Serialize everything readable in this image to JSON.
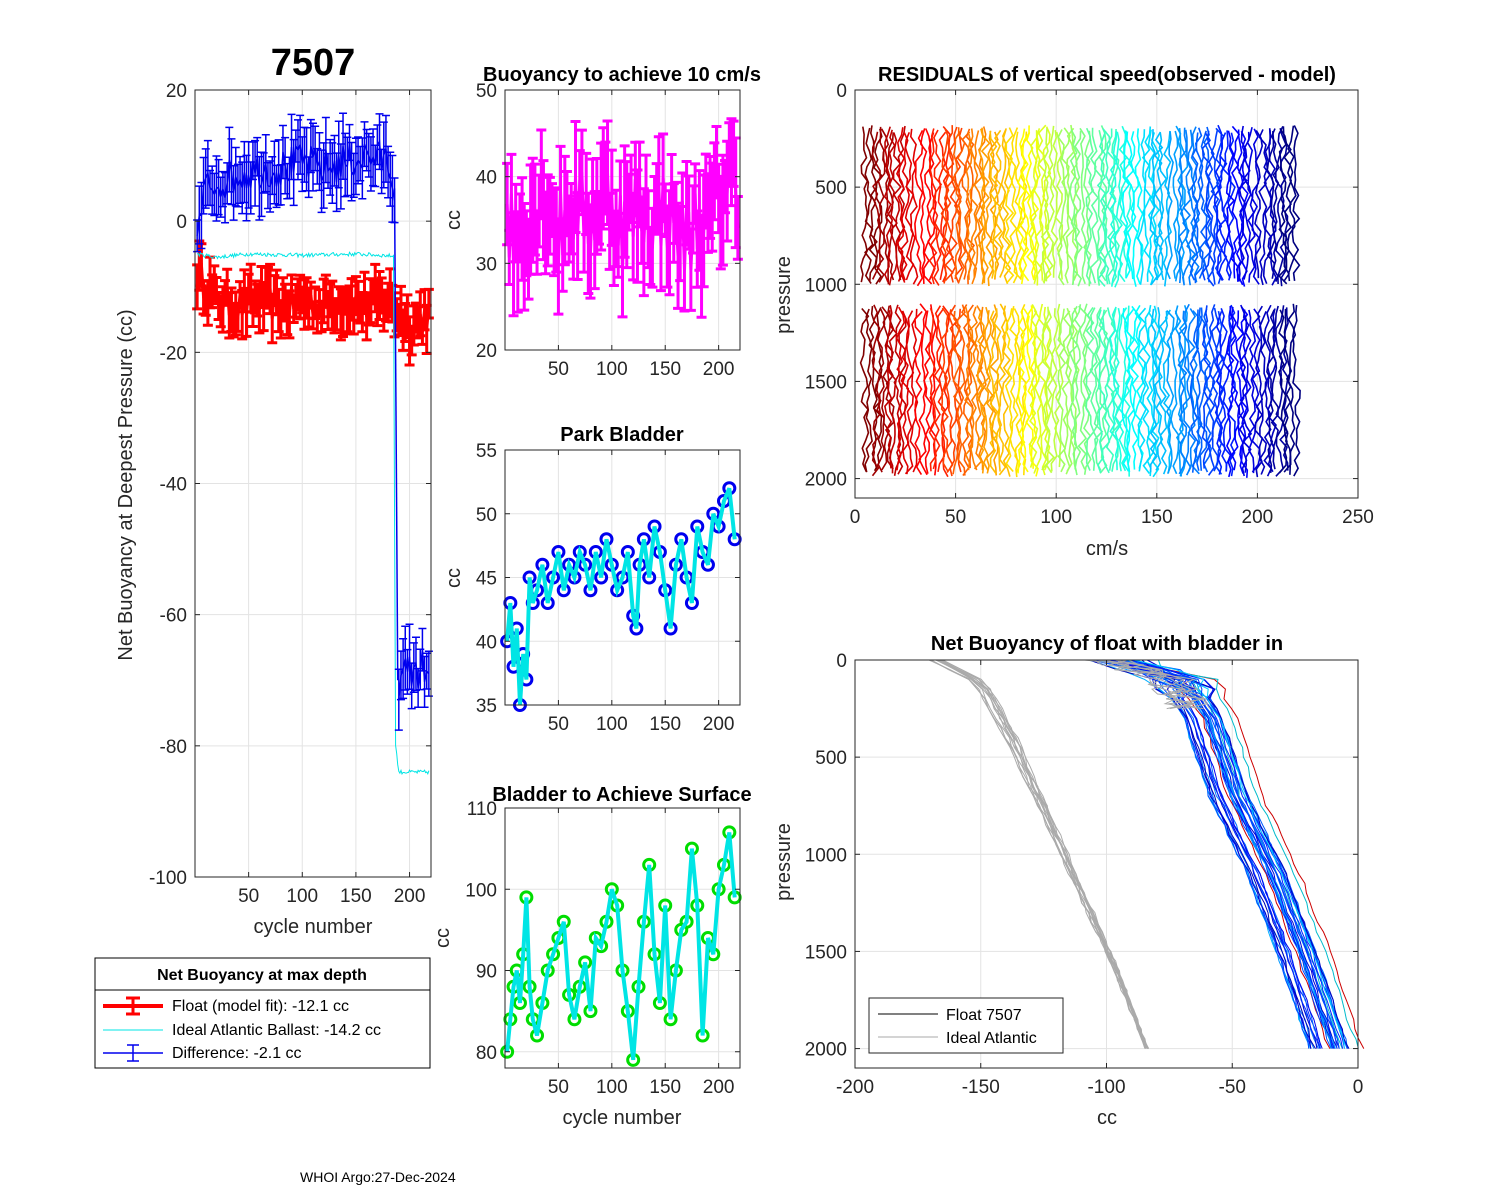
{
  "float_id": "7507",
  "footer": "WHOI Argo:27-Dec-2024",
  "colors": {
    "red": "#ff0000",
    "blue": "#0000ee",
    "cyan": "#00e5e5",
    "magenta": "#ff00ff",
    "green": "#00dd00",
    "gray": "#aaaaaa",
    "black": "#000000"
  },
  "chart_data": [
    {
      "id": "net_buoyancy",
      "type": "line",
      "title": "7507",
      "xlabel": "cycle number",
      "ylabel": "Net Buoyancy at Deepest Pressure (cc)",
      "xlim": [
        0,
        220
      ],
      "ylim": [
        -100,
        20
      ],
      "xticks": [
        50,
        100,
        150,
        200
      ],
      "xtick_labels": [
        "50",
        "100",
        "150",
        "200"
      ],
      "yticks": [
        -100,
        -80,
        -60,
        -40,
        -20,
        0,
        20
      ],
      "ytick_labels": [
        "-100",
        "-80",
        "-60",
        "-40",
        "-20",
        "0",
        "20"
      ],
      "grid": true,
      "series": [
        {
          "name": "Float (model fit)",
          "color": "#ff0000",
          "x": [
            2,
            20,
            40,
            60,
            80,
            100,
            120,
            140,
            160,
            180,
            190,
            200,
            210,
            218
          ],
          "y": [
            -8,
            -12,
            -13,
            -12,
            -13,
            -12,
            -13,
            -12,
            -13,
            -12,
            -14,
            -16,
            -15,
            -14
          ],
          "err": 3
        },
        {
          "name": "Ideal Atlantic Ballast",
          "color": "#00e5e5",
          "x": [
            2,
            20,
            50,
            100,
            150,
            185,
            187,
            190,
            200,
            218
          ],
          "y": [
            -5,
            -5.5,
            -5,
            -5.2,
            -5,
            -5.3,
            -80,
            -84,
            -84,
            -84
          ],
          "err": 0
        },
        {
          "name": "Difference",
          "color": "#0000ee",
          "x": [
            2,
            10,
            20,
            40,
            60,
            80,
            100,
            120,
            140,
            160,
            180,
            186,
            190,
            200,
            210,
            218
          ],
          "y": [
            -2,
            5,
            6,
            7,
            8,
            8,
            9,
            8,
            9,
            10,
            9,
            5,
            -70,
            -69,
            -68,
            -69
          ],
          "err": 4
        }
      ],
      "legend": {
        "title": "Net Buoyancy at max depth",
        "entries": [
          "Float (model fit): -12.1 cc",
          "Ideal Atlantic Ballast: -14.2 cc",
          "Difference:  -2.1 cc"
        ],
        "placement": "below"
      }
    },
    {
      "id": "buoyancy_10cms",
      "type": "line",
      "title": "Buoyancy to achieve 10 cm/s",
      "xlabel": "",
      "ylabel": "cc",
      "xlim": [
        0,
        220
      ],
      "ylim": [
        20,
        50
      ],
      "xticks": [
        50,
        100,
        150,
        200
      ],
      "xtick_labels": [
        "50",
        "100",
        "150",
        "200"
      ],
      "yticks": [
        20,
        30,
        40,
        50
      ],
      "ytick_labels": [
        "20",
        "30",
        "40",
        "50"
      ],
      "grid": true,
      "series": [
        {
          "name": "buoyancy",
          "color": "#ff00ff",
          "x": [
            2,
            10,
            20,
            30,
            40,
            50,
            60,
            70,
            80,
            90,
            100,
            110,
            120,
            130,
            140,
            150,
            160,
            170,
            180,
            190,
            200,
            210,
            218
          ],
          "y": [
            36,
            32,
            35,
            37,
            38,
            33,
            37,
            36,
            35,
            38,
            37,
            34,
            36,
            36,
            35,
            37,
            34,
            33,
            35,
            34,
            38,
            40,
            39
          ],
          "err": 5
        }
      ]
    },
    {
      "id": "park_bladder",
      "type": "line",
      "title": "Park Bladder",
      "xlabel": "",
      "ylabel": "cc",
      "xlim": [
        0,
        220
      ],
      "ylim": [
        35,
        55
      ],
      "xticks": [
        50,
        100,
        150,
        200
      ],
      "xtick_labels": [
        "50",
        "100",
        "150",
        "200"
      ],
      "yticks": [
        35,
        40,
        45,
        50,
        55
      ],
      "ytick_labels": [
        "35",
        "40",
        "45",
        "50",
        "55"
      ],
      "grid": true,
      "series": [
        {
          "name": "park",
          "color": "#00e5e5",
          "marker_color": "#0000ee",
          "x": [
            2,
            5,
            8,
            11,
            14,
            17,
            20,
            23,
            26,
            30,
            35,
            40,
            45,
            50,
            55,
            60,
            65,
            70,
            75,
            80,
            85,
            90,
            95,
            100,
            105,
            110,
            115,
            120,
            123,
            126,
            130,
            135,
            140,
            145,
            150,
            155,
            160,
            165,
            170,
            175,
            180,
            185,
            190,
            195,
            200,
            205,
            210,
            215
          ],
          "y": [
            40,
            43,
            38,
            41,
            35,
            39,
            37,
            45,
            43,
            44,
            46,
            43,
            45,
            47,
            44,
            46,
            45,
            47,
            46,
            44,
            47,
            45,
            48,
            46,
            44,
            45,
            47,
            42,
            41,
            46,
            48,
            45,
            49,
            47,
            44,
            41,
            46,
            48,
            45,
            43,
            49,
            47,
            46,
            50,
            49,
            51,
            52,
            48
          ]
        }
      ]
    },
    {
      "id": "bladder_surface",
      "type": "line",
      "title": "Bladder to Achieve Surface",
      "xlabel": "cycle number",
      "ylabel": "cc",
      "xlim": [
        0,
        220
      ],
      "ylim": [
        78,
        110
      ],
      "xticks": [
        50,
        100,
        150,
        200
      ],
      "xtick_labels": [
        "50",
        "100",
        "150",
        "200"
      ],
      "yticks": [
        80,
        90,
        100,
        110
      ],
      "ytick_labels": [
        "80",
        "90",
        "100",
        "110"
      ],
      "grid": true,
      "series": [
        {
          "name": "surface",
          "color": "#00e5e5",
          "marker_color": "#00dd00",
          "x": [
            2,
            5,
            8,
            11,
            14,
            17,
            20,
            23,
            26,
            30,
            35,
            40,
            45,
            50,
            55,
            60,
            65,
            70,
            75,
            80,
            85,
            90,
            95,
            100,
            105,
            110,
            115,
            120,
            125,
            130,
            135,
            140,
            145,
            150,
            155,
            160,
            165,
            170,
            175,
            180,
            185,
            190,
            195,
            200,
            205,
            210,
            215
          ],
          "y": [
            80,
            84,
            88,
            90,
            86,
            92,
            99,
            88,
            84,
            82,
            86,
            90,
            92,
            94,
            96,
            87,
            84,
            88,
            91,
            85,
            94,
            93,
            96,
            100,
            98,
            90,
            85,
            79,
            88,
            96,
            103,
            92,
            86,
            98,
            84,
            90,
            95,
            96,
            105,
            98,
            82,
            94,
            92,
            100,
            103,
            107,
            99
          ]
        }
      ]
    },
    {
      "id": "residuals",
      "type": "line",
      "title": "RESIDUALS of vertical speed(observed - model)",
      "xlabel": "cm/s",
      "ylabel": "pressure",
      "xlim": [
        0,
        250
      ],
      "ylim": [
        0,
        2100
      ],
      "y_reversed": true,
      "xticks": [
        0,
        50,
        100,
        150,
        200,
        250
      ],
      "xtick_labels": [
        "0",
        "50",
        "100",
        "150",
        "200",
        "250"
      ],
      "yticks": [
        0,
        500,
        1000,
        1500,
        2000
      ],
      "ytick_labels": [
        "0",
        "500",
        "1000",
        "1500",
        "2000"
      ],
      "grid": true,
      "profile_offsets": "one wiggly profile per cycle offset by cycle number, colored red (early cycles) to dark blue (late cycles)",
      "segments": [
        {
          "from": 180,
          "to": 1020
        },
        {
          "from": 1100,
          "to": 2000
        }
      ],
      "cycles": [
        8,
        14,
        20,
        26,
        35,
        42,
        48,
        54,
        60,
        66,
        72,
        80,
        86,
        92,
        98,
        106,
        112,
        120,
        126,
        132,
        138,
        146,
        152,
        160,
        166,
        172,
        178,
        184,
        190,
        196,
        204,
        210,
        216
      ]
    },
    {
      "id": "net_buoyancy_bladder_in",
      "type": "line",
      "title": "Net Buoyancy of float with bladder in",
      "xlabel": "cc",
      "ylabel": "pressure",
      "xlim": [
        -200,
        0
      ],
      "ylim": [
        0,
        2100
      ],
      "y_reversed": true,
      "xticks": [
        -200,
        -150,
        -100,
        -50,
        0
      ],
      "xtick_labels": [
        "-200",
        "-150",
        "-100",
        "-50",
        "0"
      ],
      "yticks": [
        0,
        500,
        1000,
        1500,
        2000
      ],
      "ytick_labels": [
        "0",
        "500",
        "1000",
        "1500",
        "2000"
      ],
      "grid": true,
      "series": [
        {
          "name": "Float 7507",
          "color": "#000000",
          "x": [
            -100,
            -75,
            -65,
            -55,
            -40,
            -28,
            -15
          ],
          "p": [
            0,
            100,
            300,
            700,
            1100,
            1500,
            2000
          ]
        },
        {
          "name": "Ideal Atlantic",
          "color": "#aaaaaa",
          "x": [
            -168,
            -150,
            -138,
            -124,
            -110,
            -96,
            -84
          ],
          "p": [
            0,
            120,
            400,
            800,
            1200,
            1600,
            2000
          ]
        }
      ],
      "legend": {
        "entries": [
          "Float 7507",
          "Ideal Atlantic"
        ],
        "placement": "bottom-left"
      }
    }
  ]
}
